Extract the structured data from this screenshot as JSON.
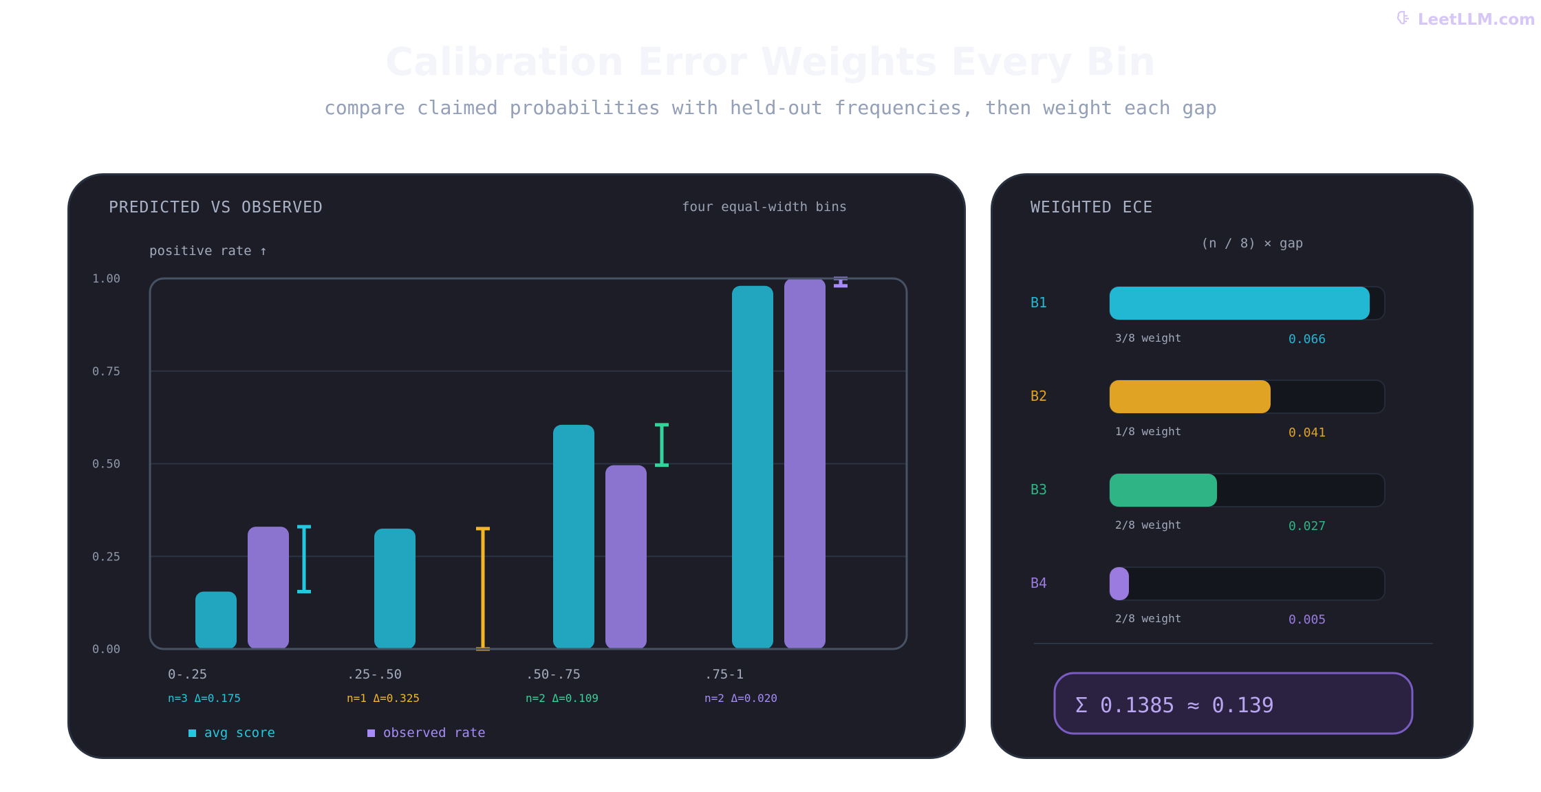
{
  "brand": {
    "name": "LeetLLM.com",
    "color": "#d6c7f7"
  },
  "header": {
    "title": "Calibration Error Weights Every Bin",
    "subtitle": "compare claimed probabilities with held-out frequencies, then weight each gap"
  },
  "left_panel": {
    "heading": "PREDICTED VS OBSERVED",
    "note": "four equal-width bins",
    "y_caption": "positive rate ↑",
    "legend": {
      "avg": "avg score",
      "obs": "observed rate"
    }
  },
  "right_panel": {
    "heading": "WEIGHTED ECE",
    "formula": "(n / 8) × gap",
    "total": "Σ 0.1385 ≈ 0.139",
    "rows": [
      {
        "id": "B1",
        "weight_label": "3/8 weight",
        "value": "0.066",
        "fill": 0.945,
        "color": "#22b8d4"
      },
      {
        "id": "B2",
        "weight_label": "1/8 weight",
        "value": "0.041",
        "fill": 0.585,
        "color": "#e0a324"
      },
      {
        "id": "B3",
        "weight_label": "2/8 weight",
        "value": "0.027",
        "fill": 0.39,
        "color": "#2fb585"
      },
      {
        "id": "B4",
        "weight_label": "2/8 weight",
        "value": "0.005",
        "fill": 0.07,
        "color": "#9b7be0"
      }
    ]
  },
  "chart_data": {
    "type": "bar",
    "categories": [
      "0-.25",
      ".25-.50",
      ".50-.75",
      ".75-1"
    ],
    "bin_notes": [
      "n=3 Δ=0.175",
      "n=1 Δ=0.325",
      "n=2 Δ=0.109",
      "n=2 Δ=0.020"
    ],
    "bin_colors": [
      "#22c8e0",
      "#f3b626",
      "#34d399",
      "#a78bfa"
    ],
    "series": [
      {
        "name": "avg score",
        "values": [
          0.155,
          0.325,
          0.605,
          0.98
        ],
        "color": "#22a6bf"
      },
      {
        "name": "observed rate",
        "values": [
          0.33,
          null,
          0.496,
          1.0
        ],
        "color": "#8b73d0"
      }
    ],
    "gaps": [
      [
        0.155,
        0.33
      ],
      [
        0.0,
        0.325
      ],
      [
        0.496,
        0.605
      ],
      [
        0.98,
        1.0
      ]
    ],
    "ylabel": "positive rate ↑",
    "ylim": [
      0,
      1
    ],
    "yticks": [
      "0.00",
      "0.25",
      "0.50",
      "0.75",
      "1.00"
    ],
    "grid": true,
    "legend_position": "bottom-left"
  }
}
